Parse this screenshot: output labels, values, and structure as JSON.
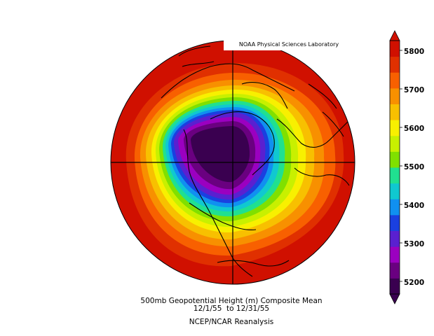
{
  "credit": "NOAA Physical Sciences Laboratory",
  "caption": {
    "line1": "500mb Geopotential Height (m) Composite Mean",
    "line2": "12/1/55  to 12/31/55",
    "line3": "NCEP/NCAR Reanalysis"
  },
  "colorbar": {
    "tick_labels": [
      "5800",
      "5700",
      "5600",
      "5500",
      "5400",
      "5300",
      "5200"
    ],
    "colors": [
      "#3a0050",
      "#6a0080",
      "#9b00c0",
      "#5a20d0",
      "#1a40e0",
      "#1090f0",
      "#10c8d0",
      "#20e090",
      "#80e000",
      "#c8f000",
      "#f8f000",
      "#f8c000",
      "#f89000",
      "#f86000",
      "#e03000",
      "#d01000"
    ]
  },
  "map": {
    "projection": "north-polar-stereographic",
    "field": "500mb geopotential height",
    "units": "m",
    "range": [
      5200,
      5800
    ]
  }
}
